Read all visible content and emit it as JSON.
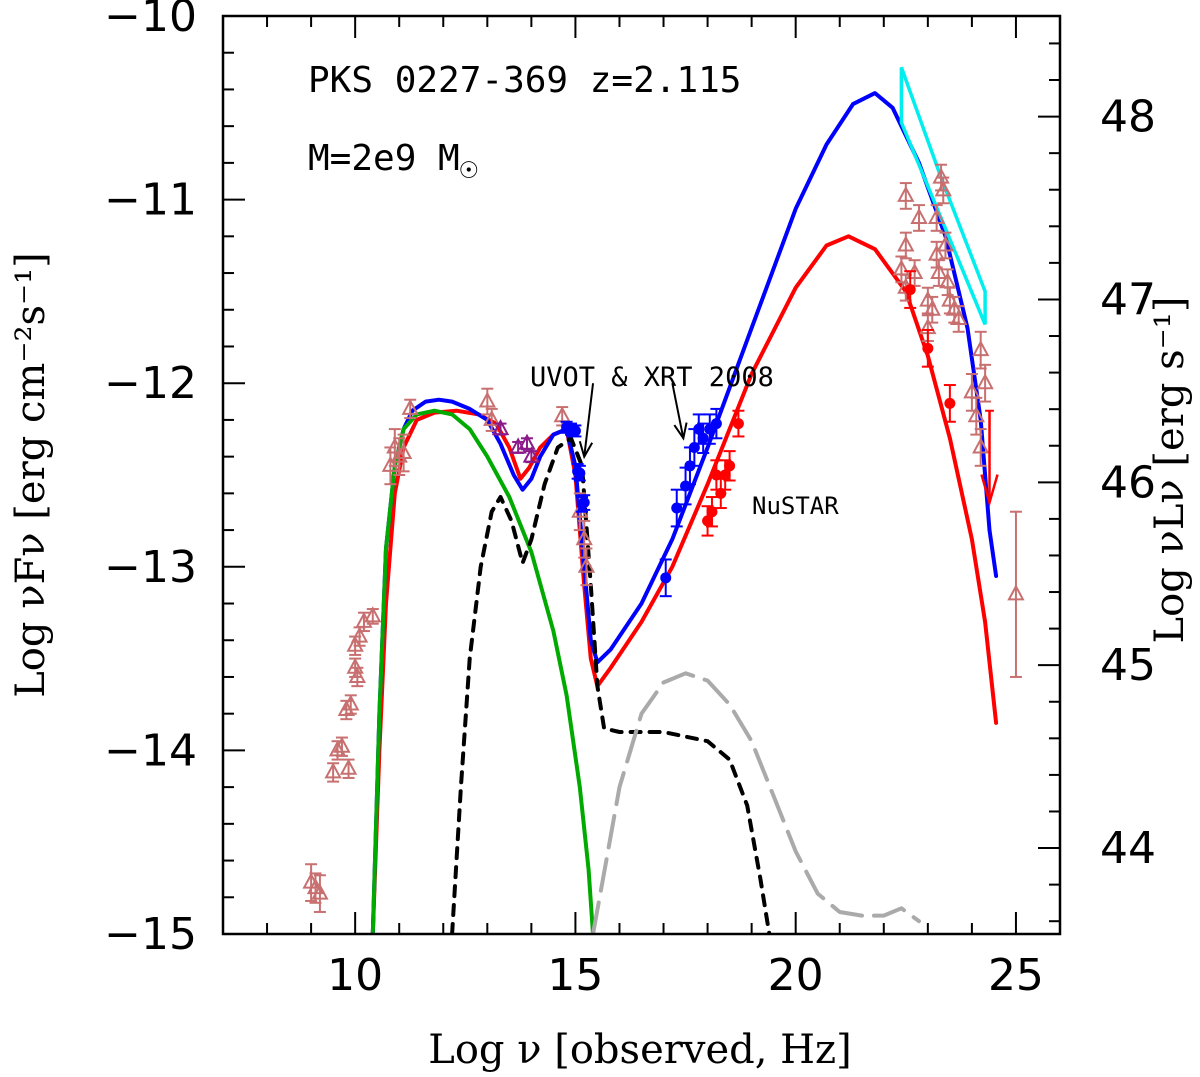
{
  "chart_data": {
    "type": "scatter",
    "title": "PKS 0227-369  z=2.115",
    "subtitle_mass": "M=2e9 M",
    "xlabel": "Log ν  [observed, Hz]",
    "ylabel": "Log νFν  [erg cm⁻²s⁻¹]",
    "ylabel_right": "Log νLν  [erg s⁻¹]",
    "xlim": [
      7,
      26
    ],
    "ylim": [
      -15,
      -10
    ],
    "right_ylim": [
      43.53,
      48.55
    ],
    "x_ticks": [
      10,
      15,
      20,
      25
    ],
    "x_tick_labels": [
      "10",
      "15",
      "20",
      "25"
    ],
    "y_ticks": [
      -15,
      -14,
      -13,
      -12,
      -11,
      -10
    ],
    "y_tick_labels": [
      "−15",
      "−14",
      "−13",
      "−12",
      "−11",
      "−10"
    ],
    "right_ticks": [
      44,
      45,
      46,
      47,
      48
    ],
    "right_tick_labels": [
      "44",
      "45",
      "46",
      "47",
      "48"
    ],
    "annotations": [
      {
        "text": "UVOT & XRT 2008",
        "color": "#000000"
      },
      {
        "text": "NuSTAR",
        "color": "#ff0000"
      }
    ],
    "arrows": [
      {
        "name": "uvot-arrow",
        "from": [
          15.4,
          -12.0
        ],
        "to": [
          15.2,
          -12.4
        ]
      },
      {
        "name": "xrt-arrow",
        "from": [
          17.2,
          -12.0
        ],
        "to": [
          17.45,
          -12.3
        ]
      }
    ],
    "models": [
      {
        "name": "red-model",
        "color": "#ff0000",
        "dash": "",
        "points": [
          [
            10.4,
            -15
          ],
          [
            10.55,
            -14.0
          ],
          [
            10.7,
            -13.2
          ],
          [
            10.9,
            -12.6
          ],
          [
            11.1,
            -12.35
          ],
          [
            11.4,
            -12.2
          ],
          [
            11.8,
            -12.16
          ],
          [
            12.3,
            -12.15
          ],
          [
            12.8,
            -12.17
          ],
          [
            13.2,
            -12.22
          ],
          [
            13.5,
            -12.35
          ],
          [
            13.75,
            -12.52
          ],
          [
            13.95,
            -12.46
          ],
          [
            14.2,
            -12.35
          ],
          [
            14.5,
            -12.28
          ],
          [
            14.8,
            -12.25
          ],
          [
            15.0,
            -12.5
          ],
          [
            15.2,
            -13.1
          ],
          [
            15.35,
            -13.5
          ],
          [
            15.5,
            -13.65
          ],
          [
            15.8,
            -13.55
          ],
          [
            16.5,
            -13.3
          ],
          [
            17.2,
            -13.0
          ],
          [
            18.0,
            -12.55
          ],
          [
            19.0,
            -11.95
          ],
          [
            20.0,
            -11.48
          ],
          [
            20.7,
            -11.25
          ],
          [
            21.2,
            -11.2
          ],
          [
            21.8,
            -11.27
          ],
          [
            22.5,
            -11.5
          ],
          [
            23.0,
            -11.85
          ],
          [
            23.5,
            -12.3
          ],
          [
            24.0,
            -12.85
          ],
          [
            24.3,
            -13.3
          ],
          [
            24.55,
            -13.85
          ]
        ]
      },
      {
        "name": "blue-model",
        "color": "#0000ff",
        "dash": "",
        "points": [
          [
            10.4,
            -15
          ],
          [
            10.55,
            -13.8
          ],
          [
            10.7,
            -12.9
          ],
          [
            10.9,
            -12.45
          ],
          [
            11.1,
            -12.25
          ],
          [
            11.3,
            -12.15
          ],
          [
            11.6,
            -12.1
          ],
          [
            11.9,
            -12.09
          ],
          [
            12.2,
            -12.1
          ],
          [
            12.6,
            -12.14
          ],
          [
            13.0,
            -12.2
          ],
          [
            13.3,
            -12.33
          ],
          [
            13.6,
            -12.5
          ],
          [
            13.8,
            -12.58
          ],
          [
            14.0,
            -12.52
          ],
          [
            14.2,
            -12.4
          ],
          [
            14.5,
            -12.28
          ],
          [
            14.8,
            -12.25
          ],
          [
            15.0,
            -12.45
          ],
          [
            15.2,
            -13.0
          ],
          [
            15.35,
            -13.4
          ],
          [
            15.5,
            -13.52
          ],
          [
            15.8,
            -13.45
          ],
          [
            16.5,
            -13.2
          ],
          [
            17.2,
            -12.85
          ],
          [
            18.0,
            -12.35
          ],
          [
            19.0,
            -11.7
          ],
          [
            20.0,
            -11.05
          ],
          [
            20.7,
            -10.7
          ],
          [
            21.3,
            -10.48
          ],
          [
            21.8,
            -10.42
          ],
          [
            22.2,
            -10.5
          ],
          [
            22.8,
            -10.8
          ],
          [
            23.4,
            -11.2
          ],
          [
            23.9,
            -11.7
          ],
          [
            24.2,
            -12.2
          ],
          [
            24.4,
            -12.8
          ],
          [
            24.55,
            -13.05
          ]
        ]
      },
      {
        "name": "green-synchrotron",
        "color": "#00aa00",
        "dash": "",
        "points": [
          [
            10.4,
            -15
          ],
          [
            10.55,
            -13.8
          ],
          [
            10.7,
            -12.9
          ],
          [
            10.9,
            -12.45
          ],
          [
            11.1,
            -12.25
          ],
          [
            11.4,
            -12.17
          ],
          [
            11.8,
            -12.15
          ],
          [
            12.2,
            -12.17
          ],
          [
            12.6,
            -12.25
          ],
          [
            13.0,
            -12.4
          ],
          [
            13.5,
            -12.62
          ],
          [
            14.0,
            -12.92
          ],
          [
            14.5,
            -13.35
          ],
          [
            14.8,
            -13.7
          ],
          [
            15.1,
            -14.2
          ],
          [
            15.3,
            -14.65
          ],
          [
            15.4,
            -15
          ]
        ]
      },
      {
        "name": "black-disk-torus",
        "color": "#000000",
        "dash": "10,9",
        "points": [
          [
            12.2,
            -15
          ],
          [
            12.4,
            -14.2
          ],
          [
            12.6,
            -13.5
          ],
          [
            12.85,
            -13.0
          ],
          [
            13.1,
            -12.7
          ],
          [
            13.3,
            -12.62
          ],
          [
            13.55,
            -12.75
          ],
          [
            13.8,
            -12.98
          ],
          [
            14.0,
            -12.85
          ],
          [
            14.3,
            -12.55
          ],
          [
            14.6,
            -12.35
          ],
          [
            14.9,
            -12.3
          ],
          [
            15.15,
            -12.45
          ],
          [
            15.35,
            -13.1
          ],
          [
            15.5,
            -13.65
          ],
          [
            15.65,
            -13.88
          ],
          [
            16.0,
            -13.9
          ],
          [
            17.0,
            -13.9
          ],
          [
            18.0,
            -13.95
          ],
          [
            18.5,
            -14.05
          ],
          [
            18.9,
            -14.3
          ],
          [
            19.2,
            -14.7
          ],
          [
            19.4,
            -15
          ]
        ]
      },
      {
        "name": "gray-corona",
        "color": "#aaaaaa",
        "dash": "32,12",
        "points": [
          [
            15.4,
            -15
          ],
          [
            15.7,
            -14.6
          ],
          [
            16.0,
            -14.2
          ],
          [
            16.5,
            -13.8
          ],
          [
            17.0,
            -13.63
          ],
          [
            17.5,
            -13.58
          ],
          [
            18.0,
            -13.62
          ],
          [
            18.5,
            -13.75
          ],
          [
            19.0,
            -13.95
          ],
          [
            19.5,
            -14.25
          ],
          [
            20.0,
            -14.55
          ],
          [
            20.5,
            -14.78
          ],
          [
            21.0,
            -14.88
          ],
          [
            21.5,
            -14.9
          ],
          [
            22.0,
            -14.9
          ],
          [
            22.4,
            -14.86
          ],
          [
            22.8,
            -14.93
          ]
        ]
      }
    ],
    "fermi_bowtie": {
      "color": "#00eeee",
      "points": [
        [
          22.4,
          -10.28
        ],
        [
          22.4,
          -10.58
        ],
        [
          23.3,
          -11.1
        ],
        [
          24.3,
          -11.68
        ],
        [
          24.3,
          -11.5
        ],
        [
          23.3,
          -10.88
        ]
      ]
    },
    "series": [
      {
        "name": "archival",
        "marker": "triangle-open",
        "color": "#c87070",
        "points": [
          [
            9.0,
            -14.72,
            0.1
          ],
          [
            9.1,
            -14.75,
            0.08
          ],
          [
            9.2,
            -14.78,
            0.1
          ],
          [
            9.5,
            -14.12,
            0.05
          ],
          [
            9.6,
            -14.0,
            0.05
          ],
          [
            9.7,
            -13.98,
            0.05
          ],
          [
            9.85,
            -14.1,
            0.05
          ],
          [
            9.8,
            -13.78,
            0.05
          ],
          [
            9.9,
            -13.75,
            0.05
          ],
          [
            10.0,
            -13.55,
            0.05
          ],
          [
            10.05,
            -13.6,
            0.05
          ],
          [
            10.0,
            -13.43,
            0.05
          ],
          [
            10.1,
            -13.38,
            0.05
          ],
          [
            10.2,
            -13.3,
            0.05
          ],
          [
            10.4,
            -13.27,
            0.04
          ],
          [
            10.8,
            -12.45,
            0.1
          ],
          [
            10.9,
            -12.35,
            0.1
          ],
          [
            11.0,
            -12.4,
            0.1
          ],
          [
            11.1,
            -12.38,
            0.1
          ],
          [
            11.25,
            -12.14,
            0.05
          ],
          [
            13.0,
            -12.1,
            0.07
          ],
          [
            13.1,
            -12.2,
            0.06
          ],
          [
            14.7,
            -12.18,
            0.05
          ],
          [
            15.1,
            -12.7,
            0.1
          ],
          [
            15.2,
            -12.85,
            0.1
          ],
          [
            15.25,
            -13.0,
            0.1
          ],
          [
            22.5,
            -10.98,
            0.07
          ],
          [
            22.5,
            -11.25,
            0.07
          ],
          [
            22.4,
            -11.38,
            0.07
          ],
          [
            22.5,
            -11.48,
            0.07
          ],
          [
            22.7,
            -11.4,
            0.07
          ],
          [
            22.8,
            -11.1,
            0.07
          ],
          [
            23.0,
            -11.55,
            0.07
          ],
          [
            23.0,
            -11.7,
            0.07
          ],
          [
            23.1,
            -11.6,
            0.07
          ],
          [
            23.2,
            -11.3,
            0.07
          ],
          [
            23.2,
            -11.1,
            0.07
          ],
          [
            23.25,
            -11.4,
            0.07
          ],
          [
            23.3,
            -10.88,
            0.07
          ],
          [
            23.35,
            -10.95,
            0.07
          ],
          [
            23.4,
            -11.25,
            0.07
          ],
          [
            23.45,
            -11.45,
            0.07
          ],
          [
            23.5,
            -11.55,
            0.07
          ],
          [
            23.6,
            -11.6,
            0.07
          ],
          [
            23.7,
            -11.65,
            0.07
          ],
          [
            24.0,
            -12.05,
            0.1
          ],
          [
            24.1,
            -12.18,
            0.1
          ],
          [
            24.2,
            -12.35,
            0.1
          ],
          [
            24.3,
            -12.0,
            0.1
          ],
          [
            24.2,
            -11.82,
            0.1
          ],
          [
            25.0,
            -13.15,
            0.45
          ]
        ]
      },
      {
        "name": "purple",
        "marker": "triangle-open",
        "color": "#8b1a8b",
        "points": [
          [
            13.3,
            -12.25,
            0.03
          ],
          [
            13.9,
            -12.33,
            0.03
          ],
          [
            13.7,
            -12.35,
            0.03
          ],
          [
            14.0,
            -12.4,
            0.03
          ]
        ]
      },
      {
        "name": "blue-2008",
        "marker": "circle-filled",
        "color": "#0000ff",
        "points": [
          [
            14.8,
            -12.24,
            0.03
          ],
          [
            14.9,
            -12.25,
            0.03
          ],
          [
            15.0,
            -12.26,
            0.03
          ],
          [
            15.05,
            -12.48,
            0.04
          ],
          [
            15.1,
            -12.49,
            0.04
          ],
          [
            15.15,
            -12.66,
            0.04
          ],
          [
            15.2,
            -12.65,
            0.04
          ],
          [
            17.05,
            -13.06,
            0.1
          ],
          [
            17.3,
            -12.68,
            0.1
          ],
          [
            17.5,
            -12.56,
            0.1
          ],
          [
            17.6,
            -12.45,
            0.1
          ],
          [
            17.7,
            -12.35,
            0.1
          ],
          [
            17.8,
            -12.25,
            0.08
          ],
          [
            17.9,
            -12.3,
            0.08
          ],
          [
            18.05,
            -12.25,
            0.08
          ],
          [
            18.2,
            -12.22,
            0.08
          ]
        ]
      },
      {
        "name": "nustar",
        "marker": "circle-filled",
        "color": "#ff0000",
        "points": [
          [
            18.0,
            -12.75,
            0.08
          ],
          [
            18.1,
            -12.7,
            0.08
          ],
          [
            18.2,
            -12.5,
            0.08
          ],
          [
            18.3,
            -12.6,
            0.08
          ],
          [
            18.4,
            -12.5,
            0.08
          ],
          [
            18.5,
            -12.45,
            0.08
          ],
          [
            18.7,
            -12.22,
            0.07
          ],
          [
            22.6,
            -11.49,
            0.1
          ],
          [
            23.0,
            -11.81,
            0.1
          ],
          [
            23.5,
            -12.11,
            0.1
          ]
        ]
      }
    ],
    "upper_limit": {
      "name": "upper-limit-arrow",
      "color": "#ff0000",
      "x": 24.4,
      "y_top": -12.15,
      "y_bottom": -12.65,
      "x_err": [
        24.3,
        24.5
      ]
    }
  }
}
